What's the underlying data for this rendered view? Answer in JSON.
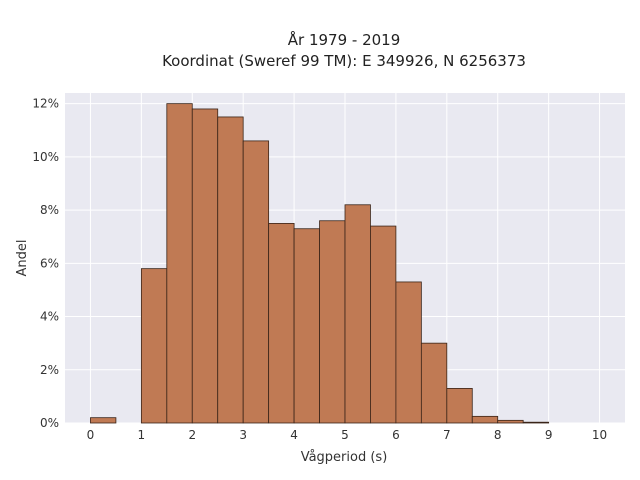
{
  "chart_data": {
    "type": "bar",
    "title": "År 1979 - 2019",
    "subtitle": "Koordinat (Sweref 99 TM): E 349926, N 6256373",
    "xlabel": "Vågperiod (s)",
    "ylabel": "Andel",
    "bin_width": 0.5,
    "bin_starts": [
      0,
      0.5,
      1,
      1.5,
      2,
      2.5,
      3,
      3.5,
      4,
      4.5,
      5,
      5.5,
      6,
      6.5,
      7,
      7.5,
      8,
      8.5,
      9,
      9.5
    ],
    "values": [
      0.2,
      0,
      5.8,
      12.0,
      11.8,
      11.5,
      10.6,
      7.5,
      7.3,
      7.6,
      8.2,
      7.4,
      5.3,
      3.0,
      1.3,
      0.25,
      0.1,
      0.03,
      0,
      0
    ],
    "xlim": [
      -0.5,
      10.5
    ],
    "ylim": [
      0,
      12.4
    ],
    "xticks": [
      "0",
      "1",
      "2",
      "3",
      "4",
      "5",
      "6",
      "7",
      "8",
      "9",
      "10"
    ],
    "yticks": [
      "0%",
      "2%",
      "4%",
      "6%",
      "8%",
      "10%",
      "12%"
    ],
    "ytick_values": [
      0,
      2,
      4,
      6,
      8,
      10,
      12
    ],
    "grid": true,
    "bar_color": "#c07a54",
    "bar_edge_color": "#3a2418",
    "plot_background": "#e9e9f1"
  }
}
